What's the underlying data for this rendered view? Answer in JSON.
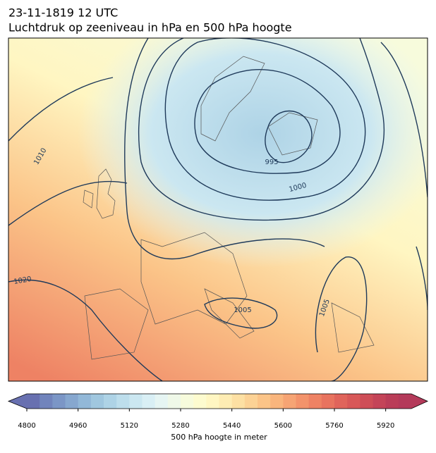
{
  "header": {
    "title": "23-11-1819 12 UTC",
    "subtitle": "Luchtdruk op zeeniveau in hPa en 500 hPa hoogte"
  },
  "map": {
    "contour_labels": [
      "1010",
      "1020",
      "1000",
      "995",
      "1005",
      "1005"
    ]
  },
  "colorbar": {
    "label": "500 hPa hoogte in meter",
    "lim": [
      4800,
      6000
    ],
    "ticks": [
      4800,
      4960,
      5120,
      5280,
      5440,
      5600,
      5760,
      5920
    ],
    "colors": [
      "#6870b0",
      "#7184bc",
      "#7b96c6",
      "#86a7cf",
      "#92b8d8",
      "#a0c7df",
      "#aed3e6",
      "#bddeec",
      "#cbe7f1",
      "#d9eff5",
      "#e6f5f3",
      "#eff8e8",
      "#f7fbdc",
      "#fdfbcf",
      "#fff6c2",
      "#feecb3",
      "#fde0a3",
      "#fcd295",
      "#fbc488",
      "#f9b57d",
      "#f6a474",
      "#f3936b",
      "#ee8264",
      "#e8735f",
      "#e0645b",
      "#d85858",
      "#ce4d57",
      "#c44458",
      "#ba3d58",
      "#b43a5a"
    ]
  }
}
